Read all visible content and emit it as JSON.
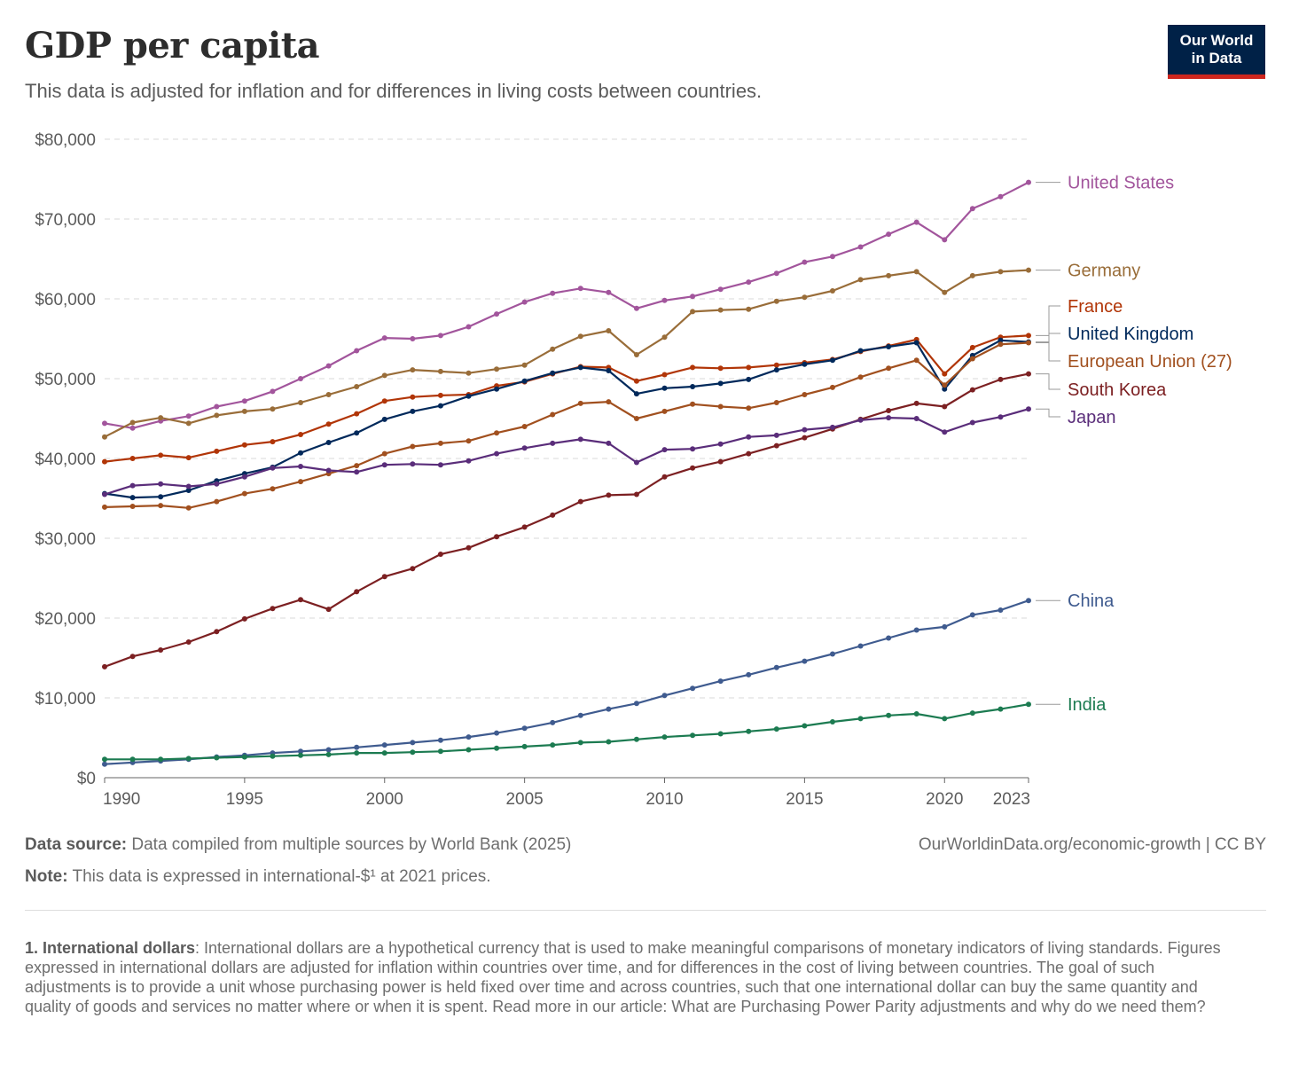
{
  "header": {
    "title": "GDP per capita",
    "subtitle": "This data is adjusted for inflation and for differences in living costs between countries.",
    "logo_line1": "Our World",
    "logo_line2": "in Data"
  },
  "footer": {
    "source_label": "Data source:",
    "source_text": " Data compiled from multiple sources by World Bank (2025)",
    "note_label": "Note:",
    "note_text": " This data is expressed in international-$¹ at 2021 prices.",
    "attribution": "OurWorldinData.org/economic-growth | CC BY",
    "footnote_label": "1. International dollars",
    "footnote_text": ": International dollars are a hypothetical currency that is used to make meaningful comparisons of monetary indicators of living standards. Figures expressed in international dollars are adjusted for inflation within countries over time, and for differences in the cost of living between countries. The goal of such adjustments is to provide a unit whose purchasing power is held fixed over time and across countries, such that one international dollar can buy the same quantity and quality of goods and services no matter where or when it is spent. Read more in our article: What are Purchasing Power Parity adjustments and why do we need them?"
  },
  "colors": {
    "logo_bg": "#002147",
    "logo_accent": "#ce261e",
    "grid": "#d9d9d9",
    "axis": "#666666"
  },
  "chart_data": {
    "type": "line",
    "title": "GDP per capita",
    "xlabel": "",
    "ylabel": "",
    "xlim": [
      1990,
      2023
    ],
    "ylim": [
      0,
      80000
    ],
    "x_ticks": [
      1990,
      1995,
      2000,
      2005,
      2010,
      2015,
      2020,
      2023
    ],
    "y_ticks": [
      0,
      10000,
      20000,
      30000,
      40000,
      50000,
      60000,
      70000,
      80000
    ],
    "y_tick_labels": [
      "$0",
      "$10,000",
      "$20,000",
      "$30,000",
      "$40,000",
      "$50,000",
      "$60,000",
      "$70,000",
      "$80,000"
    ],
    "grid": "horizontal dashed",
    "legend": "inline labels at right end",
    "x": [
      1990,
      1991,
      1992,
      1993,
      1994,
      1995,
      1996,
      1997,
      1998,
      1999,
      2000,
      2001,
      2002,
      2003,
      2004,
      2005,
      2006,
      2007,
      2008,
      2009,
      2010,
      2011,
      2012,
      2013,
      2014,
      2015,
      2016,
      2017,
      2018,
      2019,
      2020,
      2021,
      2022,
      2023
    ],
    "series": [
      {
        "name": "United States",
        "color": "#a2559c",
        "values": [
          44400,
          43800,
          44700,
          45300,
          46500,
          47200,
          48400,
          50000,
          51600,
          53500,
          55100,
          55000,
          55400,
          56500,
          58100,
          59600,
          60700,
          61300,
          60800,
          58800,
          59800,
          60300,
          61200,
          62100,
          63200,
          64600,
          65300,
          66500,
          68100,
          69600,
          67400,
          71300,
          72800,
          74600
        ]
      },
      {
        "name": "Germany",
        "color": "#996d39",
        "values": [
          42700,
          44500,
          45100,
          44400,
          45400,
          45900,
          46200,
          47000,
          48000,
          49000,
          50400,
          51100,
          50900,
          50700,
          51200,
          51700,
          53700,
          55300,
          56000,
          53000,
          55200,
          58400,
          58600,
          58700,
          59700,
          60200,
          61000,
          62400,
          62900,
          63400,
          60800,
          62900,
          63400,
          63600
        ]
      },
      {
        "name": "France",
        "color": "#b13507",
        "values": [
          39600,
          40000,
          40400,
          40100,
          40900,
          41700,
          42100,
          43000,
          44300,
          45600,
          47200,
          47700,
          47900,
          48000,
          49100,
          49600,
          50600,
          51500,
          51400,
          49700,
          50500,
          51400,
          51300,
          51400,
          51700,
          52000,
          52400,
          53400,
          54100,
          54900,
          50600,
          53900,
          55200,
          55400
        ]
      },
      {
        "name": "United Kingdom",
        "color": "#00295b",
        "values": [
          35600,
          35100,
          35200,
          36000,
          37200,
          38100,
          38900,
          40700,
          42000,
          43200,
          44900,
          45900,
          46600,
          47800,
          48700,
          49700,
          50700,
          51400,
          51000,
          48100,
          48800,
          49000,
          49400,
          49900,
          51100,
          51800,
          52300,
          53500,
          54000,
          54500,
          48700,
          52900,
          54800,
          54600
        ]
      },
      {
        "name": "European Union (27)",
        "color": "#a1501f",
        "values": [
          33900,
          34000,
          34100,
          33800,
          34600,
          35600,
          36200,
          37100,
          38100,
          39100,
          40600,
          41500,
          41900,
          42200,
          43200,
          44000,
          45500,
          46900,
          47100,
          45000,
          45900,
          46800,
          46500,
          46300,
          47000,
          48000,
          48900,
          50200,
          51300,
          52300,
          49200,
          52500,
          54300,
          54500
        ]
      },
      {
        "name": "South Korea",
        "color": "#7c2022",
        "values": [
          13900,
          15200,
          16000,
          17000,
          18300,
          19900,
          21200,
          22300,
          21100,
          23300,
          25200,
          26200,
          28000,
          28800,
          30200,
          31400,
          32900,
          34600,
          35400,
          35500,
          37700,
          38800,
          39600,
          40600,
          41600,
          42600,
          43700,
          44900,
          46000,
          46900,
          46500,
          48600,
          49900,
          50600
        ]
      },
      {
        "name": "Japan",
        "color": "#5a2d7a",
        "values": [
          35500,
          36600,
          36800,
          36500,
          36800,
          37700,
          38800,
          39000,
          38500,
          38300,
          39200,
          39300,
          39200,
          39700,
          40600,
          41300,
          41900,
          42400,
          41900,
          39500,
          41100,
          41200,
          41800,
          42700,
          42900,
          43600,
          43900,
          44800,
          45100,
          45000,
          43300,
          44500,
          45200,
          46200
        ]
      },
      {
        "name": "China",
        "color": "#3f5b8f",
        "values": [
          1700,
          1900,
          2100,
          2300,
          2600,
          2800,
          3100,
          3300,
          3500,
          3800,
          4100,
          4400,
          4700,
          5100,
          5600,
          6200,
          6900,
          7800,
          8600,
          9300,
          10300,
          11200,
          12100,
          12900,
          13800,
          14600,
          15500,
          16500,
          17500,
          18500,
          18900,
          20400,
          21000,
          22200
        ]
      },
      {
        "name": "India",
        "color": "#1c7b51",
        "values": [
          2300,
          2300,
          2300,
          2400,
          2500,
          2600,
          2700,
          2800,
          2900,
          3100,
          3100,
          3200,
          3300,
          3500,
          3700,
          3900,
          4100,
          4400,
          4500,
          4800,
          5100,
          5300,
          5500,
          5800,
          6100,
          6500,
          7000,
          7400,
          7800,
          8000,
          7400,
          8100,
          8600,
          9200
        ]
      }
    ],
    "labels": [
      {
        "name": "United States",
        "color": "#a2559c",
        "y": 74600
      },
      {
        "name": "Germany",
        "color": "#996d39",
        "y": 63600
      },
      {
        "name": "France",
        "color": "#b13507",
        "y": 55400
      },
      {
        "name": "United Kingdom",
        "color": "#00295b",
        "y": 54600
      },
      {
        "name": "European Union (27)",
        "color": "#a1501f",
        "y": 54500
      },
      {
        "name": "South Korea",
        "color": "#7c2022",
        "y": 50600
      },
      {
        "name": "Japan",
        "color": "#5a2d7a",
        "y": 46200
      },
      {
        "name": "China",
        "color": "#3f5b8f",
        "y": 22200
      },
      {
        "name": "India",
        "color": "#1c7b51",
        "y": 9200
      }
    ]
  }
}
